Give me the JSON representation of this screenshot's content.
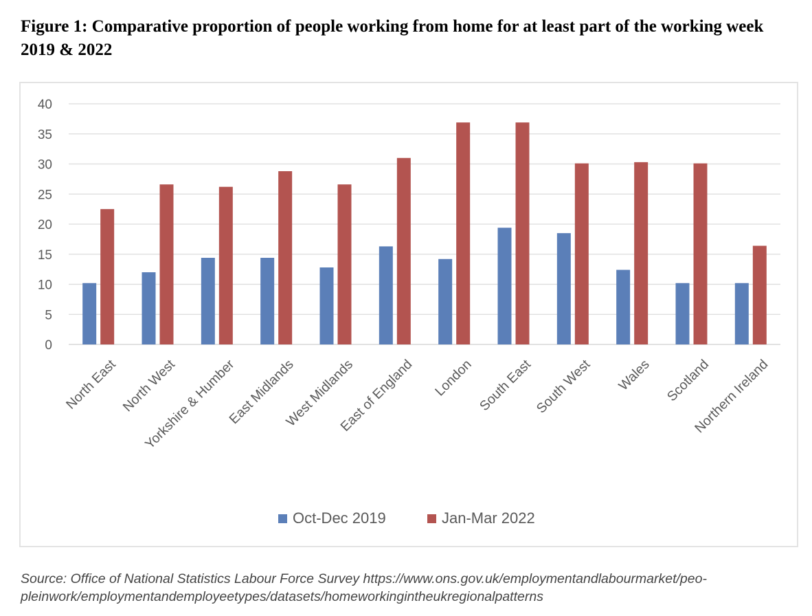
{
  "figure": {
    "title": "Figure 1: Comparative proportion of people working from home for at least part of the working week 2019 & 2022"
  },
  "source_note": {
    "line1": "Source: Office of National Statistics Labour Force Survey https://www.ons.gov.uk/employmentandlabourmarket/peo-",
    "line2": "pleinwork/employmentandemployeetypes/datasets/homeworkingintheukregionalpatterns"
  },
  "chart_data": {
    "type": "bar",
    "title": "",
    "xlabel": "",
    "ylabel": "",
    "ylim": [
      0,
      40
    ],
    "yticks": [
      0,
      5,
      10,
      15,
      20,
      25,
      30,
      35,
      40
    ],
    "grid": true,
    "legend_position": "bottom",
    "categories": [
      "North East",
      "North West",
      "Yorkshire & Humber",
      "East Midlands",
      "West Midlands",
      "East of England",
      "London",
      "South East",
      "South West",
      "Wales",
      "Scotland",
      "Northern Ireland"
    ],
    "series": [
      {
        "name": "Oct-Dec 2019",
        "color": "#5b7fb8",
        "values": [
          10.2,
          12.0,
          14.4,
          14.4,
          12.8,
          16.3,
          14.2,
          19.4,
          18.5,
          12.4,
          10.2,
          10.2
        ]
      },
      {
        "name": "Jan-Mar 2022",
        "color": "#b35450",
        "values": [
          22.5,
          26.6,
          26.2,
          28.8,
          26.6,
          31.0,
          36.9,
          36.9,
          30.1,
          30.3,
          30.1,
          16.4
        ]
      }
    ]
  }
}
